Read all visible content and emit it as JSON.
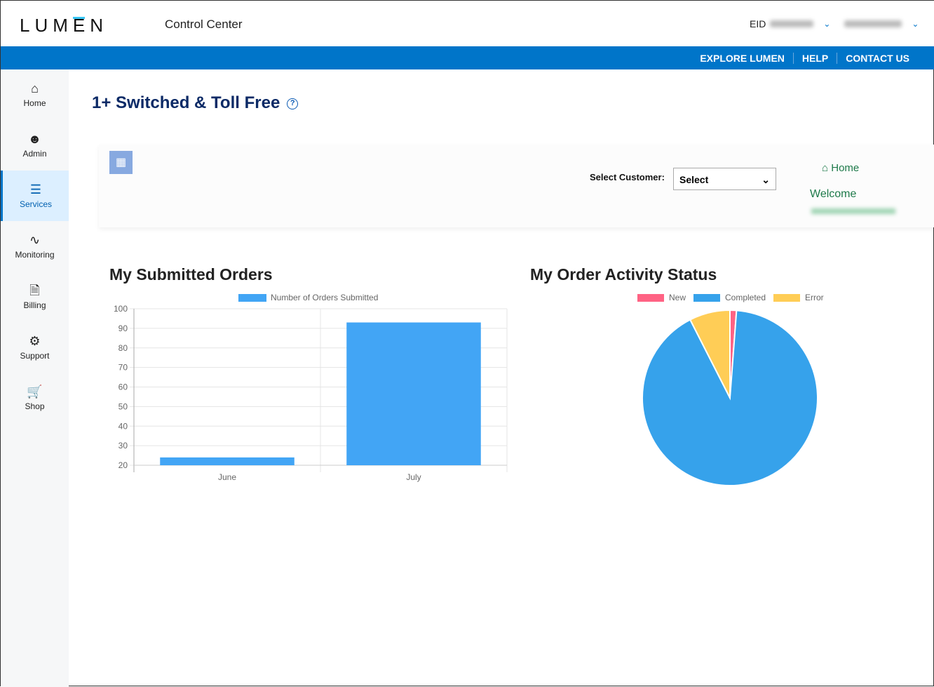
{
  "header": {
    "logo": "LUMEN",
    "app_name": "Control Center",
    "eid_label": "EID"
  },
  "top_links": [
    "EXPLORE LUMEN",
    "HELP",
    "CONTACT US"
  ],
  "sidebar": [
    {
      "label": "Home",
      "icon": "home-icon"
    },
    {
      "label": "Admin",
      "icon": "user-circle-icon"
    },
    {
      "label": "Services",
      "icon": "list-icon",
      "active": true
    },
    {
      "label": "Monitoring",
      "icon": "pulse-icon"
    },
    {
      "label": "Billing",
      "icon": "invoice-icon"
    },
    {
      "label": "Support",
      "icon": "support-icon"
    },
    {
      "label": "Shop",
      "icon": "cart-icon"
    }
  ],
  "page": {
    "title": "1+ Switched & Toll Free"
  },
  "panel": {
    "select_label": "Select Customer:",
    "select_value": "Select",
    "home_link": "Home",
    "welcome": "Welcome"
  },
  "chart_data": [
    {
      "type": "bar",
      "title": "My Submitted Orders",
      "categories": [
        "June",
        "July"
      ],
      "series": [
        {
          "name": "Number  of Orders Submitted",
          "values": [
            24,
            93
          ],
          "color": "#42a5f5"
        }
      ],
      "ylim": [
        20,
        100
      ],
      "yticks": [
        100,
        90,
        80,
        70,
        60,
        50,
        40,
        30,
        20
      ],
      "legend": "top",
      "grid": true
    },
    {
      "type": "pie",
      "title": "My Order Activity Status",
      "categories": [
        "New",
        "Completed",
        "Error"
      ],
      "values": [
        1.2,
        91.3,
        7.5
      ],
      "colors": [
        "#ff6384",
        "#36a2eb",
        "#ffcd56"
      ],
      "legend": "top"
    }
  ]
}
